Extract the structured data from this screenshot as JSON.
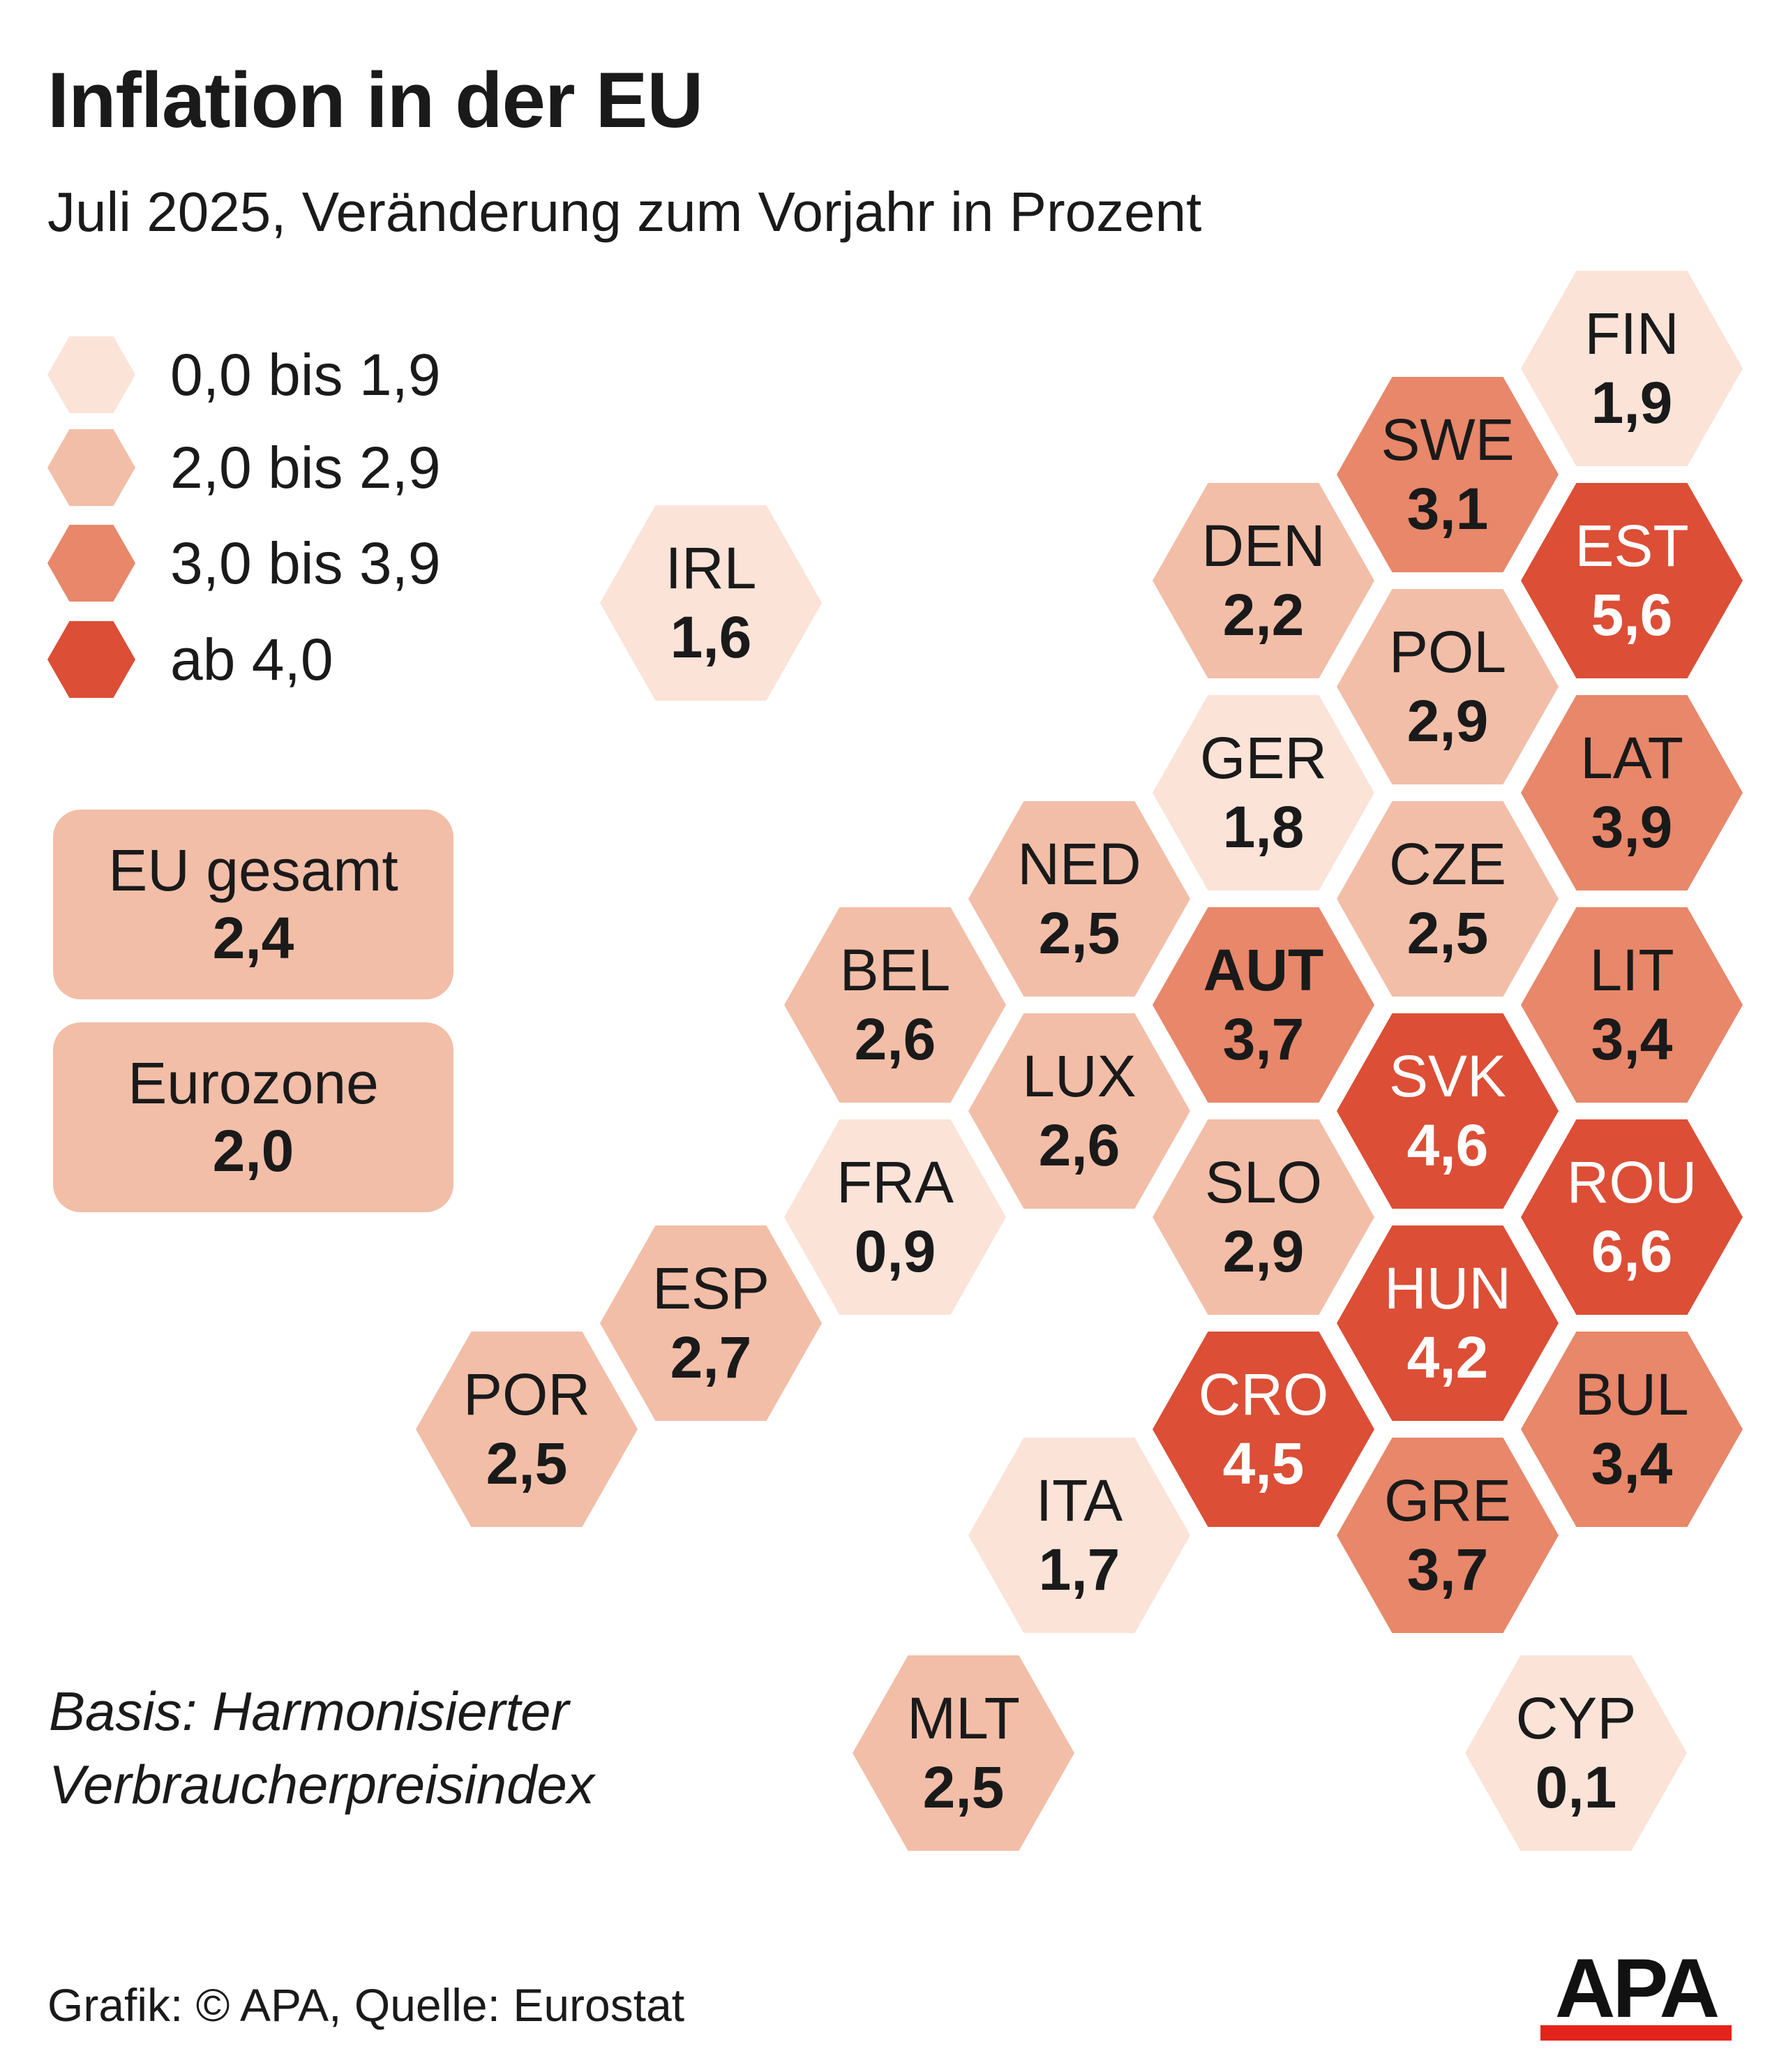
{
  "title": "Inflation in der EU",
  "subtitle": "Juli 2025, Veränderung zum Vorjahr in Prozent",
  "legend": [
    {
      "label": "0,0 bis 1,9",
      "color": "#fbe3d8"
    },
    {
      "label": "2,0 bis 2,9",
      "color": "#f2bea8"
    },
    {
      "label": "3,0 bis 3,9",
      "color": "#e8876a"
    },
    {
      "label": "ab 4,0",
      "color": "#dc4e36"
    }
  ],
  "summary": [
    {
      "label": "EU gesamt",
      "value": "2,4"
    },
    {
      "label": "Eurozone",
      "value": "2,0"
    }
  ],
  "countries": [
    {
      "code": "FIN",
      "value": "1,9"
    },
    {
      "code": "SWE",
      "value": "3,1"
    },
    {
      "code": "IRL",
      "value": "1,6"
    },
    {
      "code": "DEN",
      "value": "2,2"
    },
    {
      "code": "EST",
      "value": "5,6"
    },
    {
      "code": "POL",
      "value": "2,9"
    },
    {
      "code": "GER",
      "value": "1,8"
    },
    {
      "code": "LAT",
      "value": "3,9"
    },
    {
      "code": "NED",
      "value": "2,5"
    },
    {
      "code": "CZE",
      "value": "2,5"
    },
    {
      "code": "BEL",
      "value": "2,6"
    },
    {
      "code": "AUT",
      "value": "3,7"
    },
    {
      "code": "LIT",
      "value": "3,4"
    },
    {
      "code": "LUX",
      "value": "2,6"
    },
    {
      "code": "SVK",
      "value": "4,6"
    },
    {
      "code": "FRA",
      "value": "0,9"
    },
    {
      "code": "SLO",
      "value": "2,9"
    },
    {
      "code": "ROU",
      "value": "6,6"
    },
    {
      "code": "ESP",
      "value": "2,7"
    },
    {
      "code": "HUN",
      "value": "4,2"
    },
    {
      "code": "POR",
      "value": "2,5"
    },
    {
      "code": "CRO",
      "value": "4,5"
    },
    {
      "code": "BUL",
      "value": "3,4"
    },
    {
      "code": "ITA",
      "value": "1,7"
    },
    {
      "code": "GRE",
      "value": "3,7"
    },
    {
      "code": "MLT",
      "value": "2,5"
    },
    {
      "code": "CYP",
      "value": "0,1"
    }
  ],
  "note": {
    "line1": "Basis: Harmonisierter",
    "line2": "Verbraucherpreisindex"
  },
  "credit": "Grafik: © APA, Quelle: Eurostat",
  "logo_text": "APA"
}
